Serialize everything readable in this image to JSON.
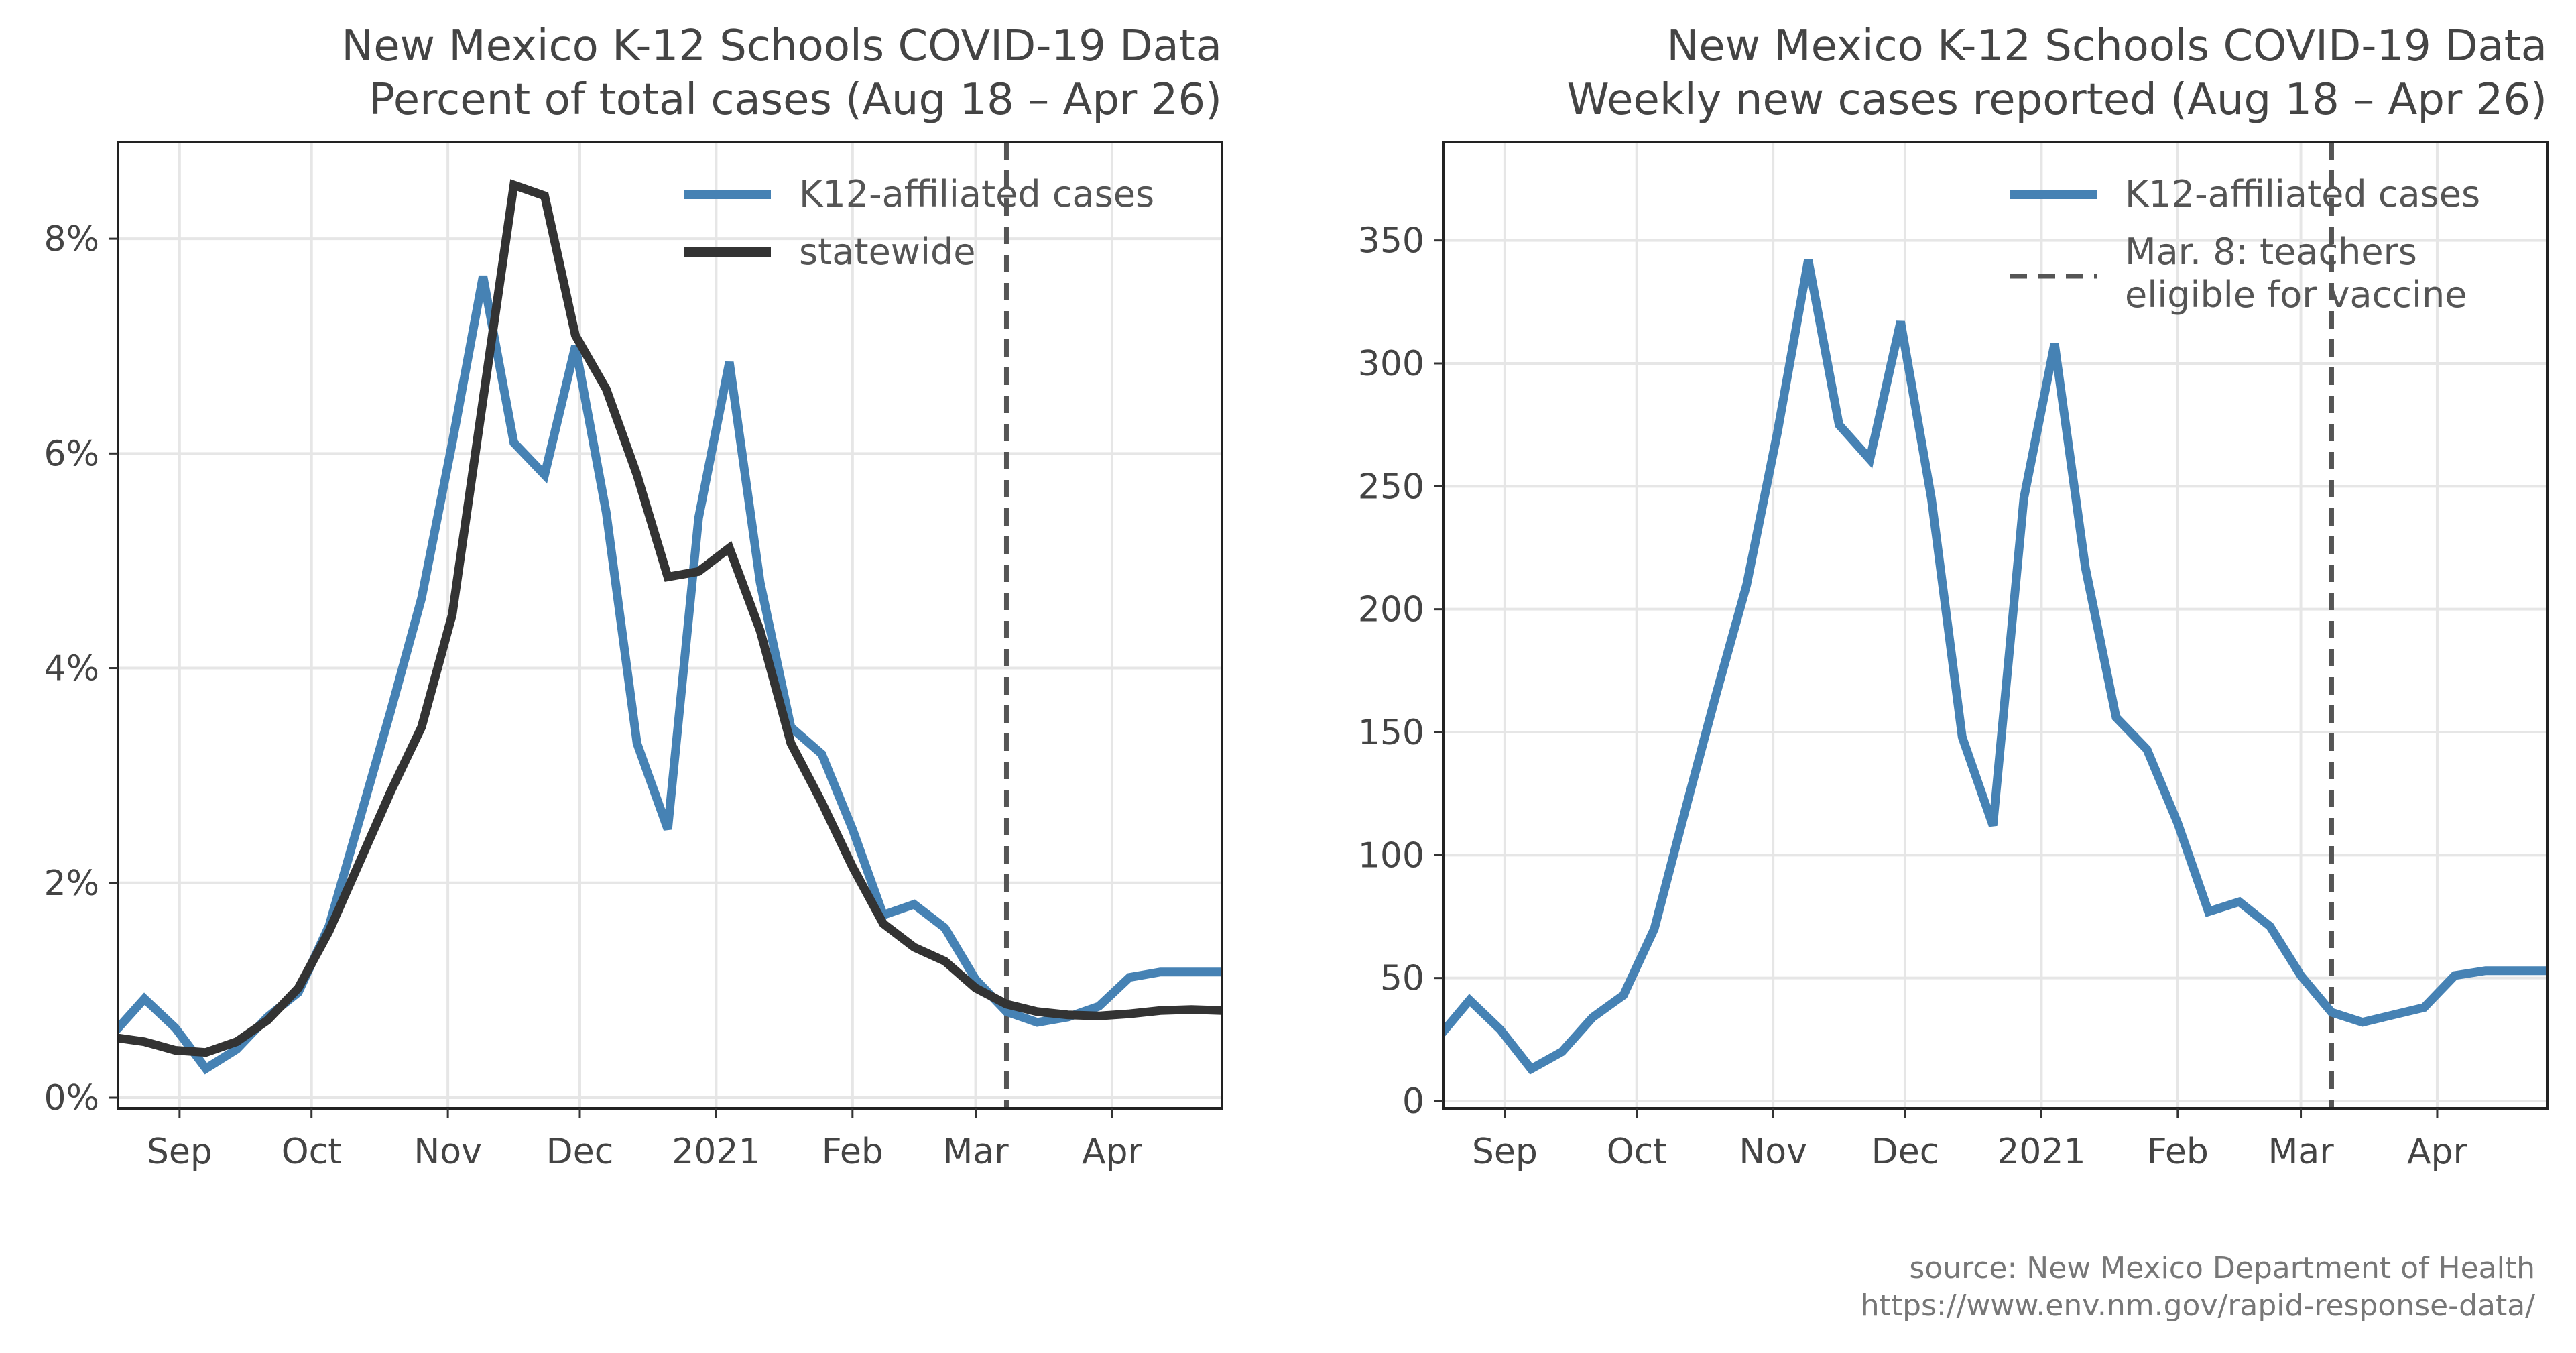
{
  "colors": {
    "k12": "#4682b4",
    "statewide": "#333333",
    "vline": "#555555",
    "grid": "#e6e6e6",
    "text": "#444444"
  },
  "chart_data": [
    {
      "type": "line",
      "title": "New Mexico K-12 Schools COVID-19 Data",
      "subtitle": "Percent of total cases (Aug 18 – Apr 26)",
      "xlabel": "",
      "ylabel": "",
      "x_axis_type": "date",
      "xlim": [
        "2020-08-18",
        "2021-04-26"
      ],
      "ylim": [
        -0.1,
        8.9
      ],
      "y_unit": "%",
      "yticks": [
        0,
        2,
        4,
        6,
        8
      ],
      "ytick_labels": [
        "0%",
        "2%",
        "4%",
        "6%",
        "8%"
      ],
      "xticks": [
        "2020-09-01",
        "2020-10-01",
        "2020-11-01",
        "2020-12-01",
        "2021-01-01",
        "2021-02-01",
        "2021-03-01",
        "2021-04-01"
      ],
      "xtick_labels": [
        "Sep",
        "Oct",
        "Nov",
        "Dec",
        "2021",
        "Feb",
        "Mar",
        "Apr"
      ],
      "grid": true,
      "legend_position": "top-right",
      "vline": {
        "date": "2021-03-08"
      },
      "series": [
        {
          "name": "K12-affiliated cases",
          "color": "#4682b4",
          "dates": [
            "2020-08-17",
            "2020-08-24",
            "2020-08-31",
            "2020-09-07",
            "2020-09-14",
            "2020-09-21",
            "2020-09-28",
            "2020-10-05",
            "2020-10-12",
            "2020-10-19",
            "2020-10-26",
            "2020-11-02",
            "2020-11-09",
            "2020-11-16",
            "2020-11-23",
            "2020-11-30",
            "2020-12-07",
            "2020-12-14",
            "2020-12-21",
            "2020-12-28",
            "2021-01-04",
            "2021-01-11",
            "2021-01-18",
            "2021-01-25",
            "2021-02-01",
            "2021-02-08",
            "2021-02-15",
            "2021-02-22",
            "2021-03-01",
            "2021-03-08",
            "2021-03-15",
            "2021-03-22",
            "2021-03-29",
            "2021-04-05",
            "2021-04-12",
            "2021-04-19",
            "2021-04-26"
          ],
          "values": [
            0.6,
            0.92,
            0.65,
            0.27,
            0.45,
            0.75,
            0.98,
            1.6,
            2.6,
            3.6,
            4.65,
            6.1,
            7.65,
            6.1,
            5.8,
            7.0,
            5.45,
            3.3,
            2.5,
            5.4,
            6.85,
            4.8,
            3.45,
            3.2,
            2.5,
            1.7,
            1.8,
            1.58,
            1.1,
            0.8,
            0.7,
            0.75,
            0.85,
            1.12,
            1.17,
            1.17,
            1.17
          ]
        },
        {
          "name": "statewide",
          "color": "#333333",
          "dates": [
            "2020-08-17",
            "2020-08-24",
            "2020-08-31",
            "2020-09-07",
            "2020-09-14",
            "2020-09-21",
            "2020-09-28",
            "2020-10-05",
            "2020-10-12",
            "2020-10-19",
            "2020-10-26",
            "2020-11-02",
            "2020-11-09",
            "2020-11-16",
            "2020-11-23",
            "2020-11-30",
            "2020-12-07",
            "2020-12-14",
            "2020-12-21",
            "2020-12-28",
            "2021-01-04",
            "2021-01-11",
            "2021-01-18",
            "2021-01-25",
            "2021-02-01",
            "2021-02-08",
            "2021-02-15",
            "2021-02-22",
            "2021-03-01",
            "2021-03-08",
            "2021-03-15",
            "2021-03-22",
            "2021-03-29",
            "2021-04-05",
            "2021-04-12",
            "2021-04-19",
            "2021-04-26"
          ],
          "values": [
            0.56,
            0.52,
            0.44,
            0.42,
            0.52,
            0.72,
            1.02,
            1.55,
            2.2,
            2.85,
            3.45,
            4.5,
            6.5,
            8.5,
            8.4,
            7.1,
            6.6,
            5.8,
            4.85,
            4.9,
            5.12,
            4.35,
            3.3,
            2.75,
            2.15,
            1.62,
            1.4,
            1.27,
            1.02,
            0.87,
            0.8,
            0.77,
            0.76,
            0.78,
            0.81,
            0.82,
            0.81
          ]
        }
      ]
    },
    {
      "type": "line",
      "title": "New Mexico K-12 Schools COVID-19 Data",
      "subtitle": "Weekly new cases reported (Aug 18 – Apr 26)",
      "xlabel": "",
      "ylabel": "",
      "x_axis_type": "date",
      "xlim": [
        "2020-08-18",
        "2021-04-26"
      ],
      "ylim": [
        -3,
        390
      ],
      "yticks": [
        0,
        50,
        100,
        150,
        200,
        250,
        300,
        350
      ],
      "ytick_labels": [
        "0",
        "50",
        "100",
        "150",
        "200",
        "250",
        "300",
        "350"
      ],
      "xticks": [
        "2020-09-01",
        "2020-10-01",
        "2020-11-01",
        "2020-12-01",
        "2021-01-01",
        "2021-02-01",
        "2021-03-01",
        "2021-04-01"
      ],
      "xtick_labels": [
        "Sep",
        "Oct",
        "Nov",
        "Dec",
        "2021",
        "Feb",
        "Mar",
        "Apr"
      ],
      "grid": true,
      "legend_position": "top-right",
      "vline": {
        "date": "2021-03-08",
        "label_lines": [
          "Mar. 8: teachers",
          "eligible for vaccine"
        ]
      },
      "series": [
        {
          "name": "K12-affiliated cases",
          "color": "#4682b4",
          "dates": [
            "2020-08-17",
            "2020-08-24",
            "2020-08-31",
            "2020-09-07",
            "2020-09-14",
            "2020-09-21",
            "2020-09-28",
            "2020-10-05",
            "2020-10-12",
            "2020-10-19",
            "2020-10-26",
            "2020-11-02",
            "2020-11-09",
            "2020-11-16",
            "2020-11-23",
            "2020-11-30",
            "2020-12-07",
            "2020-12-14",
            "2020-12-21",
            "2020-12-28",
            "2021-01-04",
            "2021-01-11",
            "2021-01-18",
            "2021-01-25",
            "2021-02-01",
            "2021-02-08",
            "2021-02-15",
            "2021-02-22",
            "2021-03-01",
            "2021-03-08",
            "2021-03-15",
            "2021-03-22",
            "2021-03-29",
            "2021-04-05",
            "2021-04-12",
            "2021-04-19",
            "2021-04-26"
          ],
          "values": [
            26,
            41,
            29,
            13,
            20,
            34,
            43,
            70,
            118,
            165,
            210,
            272,
            342,
            275,
            261,
            317,
            245,
            148,
            112,
            245,
            308,
            217,
            156,
            143,
            113,
            77,
            81,
            71,
            51,
            36,
            32,
            35,
            38,
            51,
            53,
            53,
            53
          ]
        }
      ]
    }
  ],
  "source": {
    "line1": "source: New Mexico Department of Health",
    "line2": "https://www.env.nm.gov/rapid-response-data/"
  }
}
